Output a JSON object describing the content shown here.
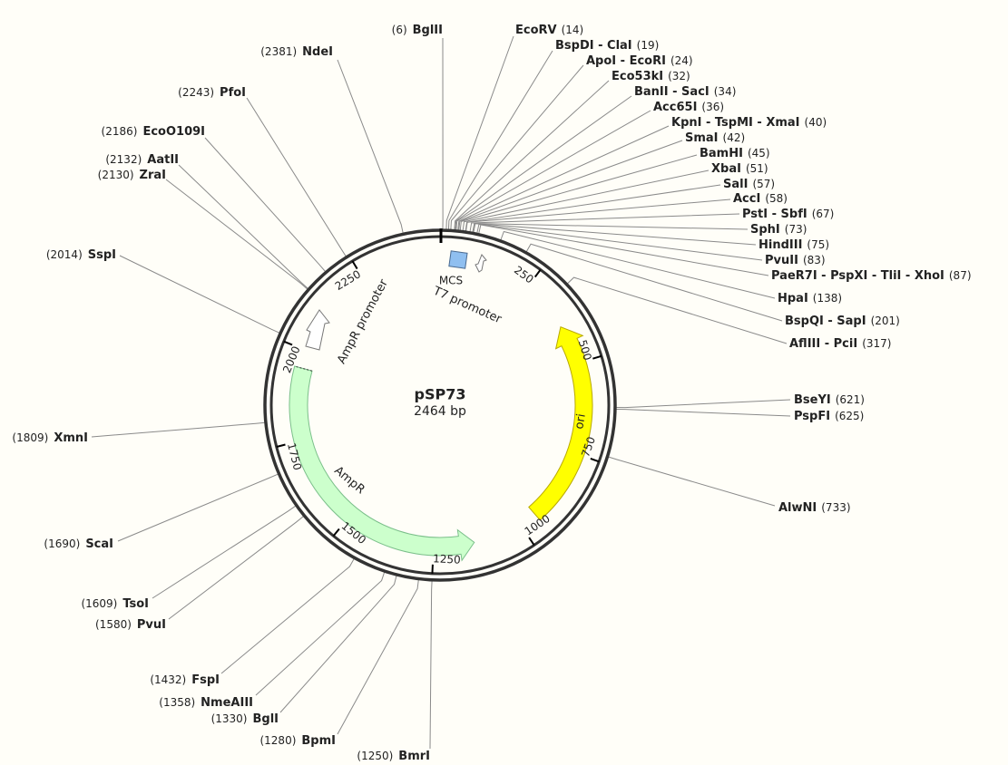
{
  "title": "pSP73",
  "subtitle": "2464 bp",
  "sites": [
    {
      "name": "BglII",
      "position": "(6)"
    },
    {
      "name": "NdeI",
      "position": "(2381)"
    },
    {
      "name": "PfoI",
      "position": "(2243)"
    },
    {
      "name": "EcoO109I",
      "position": "(2186)"
    },
    {
      "name": "AatII",
      "position": "(2132)"
    },
    {
      "name": "ZraI",
      "position": "(2130)"
    },
    {
      "name": "SspI",
      "position": "(2014)"
    },
    {
      "name": "XmnI",
      "position": "(1809)"
    },
    {
      "name": "ScaI",
      "position": "(1690)"
    },
    {
      "name": "TsoI",
      "position": "(1609)"
    },
    {
      "name": "PvuI",
      "position": "(1580)"
    },
    {
      "name": "FspI",
      "position": "(1432)"
    },
    {
      "name": "NmeAIII",
      "position": "(1358)"
    },
    {
      "name": "BglI",
      "position": "(1330)"
    },
    {
      "name": "BpmI",
      "position": "(1280)"
    },
    {
      "name": "BmrI",
      "position": "(1250)"
    },
    {
      "name": "EcoRV",
      "position": "(14)"
    },
    {
      "name": "BspDI - ClaI",
      "position": "(19)"
    },
    {
      "name": "ApoI - EcoRI",
      "position": "(24)"
    },
    {
      "name": "Eco53kI",
      "position": "(32)"
    },
    {
      "name": "BanII - SacI",
      "position": "(34)"
    },
    {
      "name": "Acc65I",
      "position": "(36)"
    },
    {
      "name": "KpnI - TspMI - XmaI",
      "position": "(40)"
    },
    {
      "name": "SmaI",
      "position": "(42)"
    },
    {
      "name": "BamHI",
      "position": "(45)"
    },
    {
      "name": "XbaI",
      "position": "(51)"
    },
    {
      "name": "SalI",
      "position": "(57)"
    },
    {
      "name": "AccI",
      "position": "(58)"
    },
    {
      "name": "PstI - SbfI",
      "position": "(67)"
    },
    {
      "name": "SphI",
      "position": "(73)"
    },
    {
      "name": "HindIII",
      "position": "(75)"
    },
    {
      "name": "PvuII",
      "position": "(83)"
    },
    {
      "name": "PaeR7I - PspXI - TliI - XhoI",
      "position": "(87)"
    },
    {
      "name": "HpaI",
      "position": "(138)"
    },
    {
      "name": "BspQI - SapI",
      "position": "(201)"
    },
    {
      "name": "AflIII - PciI",
      "position": "(317)"
    },
    {
      "name": "BseYI",
      "position": "(621)"
    },
    {
      "name": "PspFI",
      "position": "(625)"
    },
    {
      "name": "AlwNI",
      "position": "(733)"
    }
  ],
  "ticks": [
    250,
    500,
    750,
    1000,
    1250,
    1500,
    1750,
    2000,
    2250
  ],
  "features": {
    "mcs": "MCS",
    "t7": "T7 promoter",
    "ampr_promoter": "AmpR promoter",
    "ampr": "AmpR",
    "ori": "ori"
  }
}
